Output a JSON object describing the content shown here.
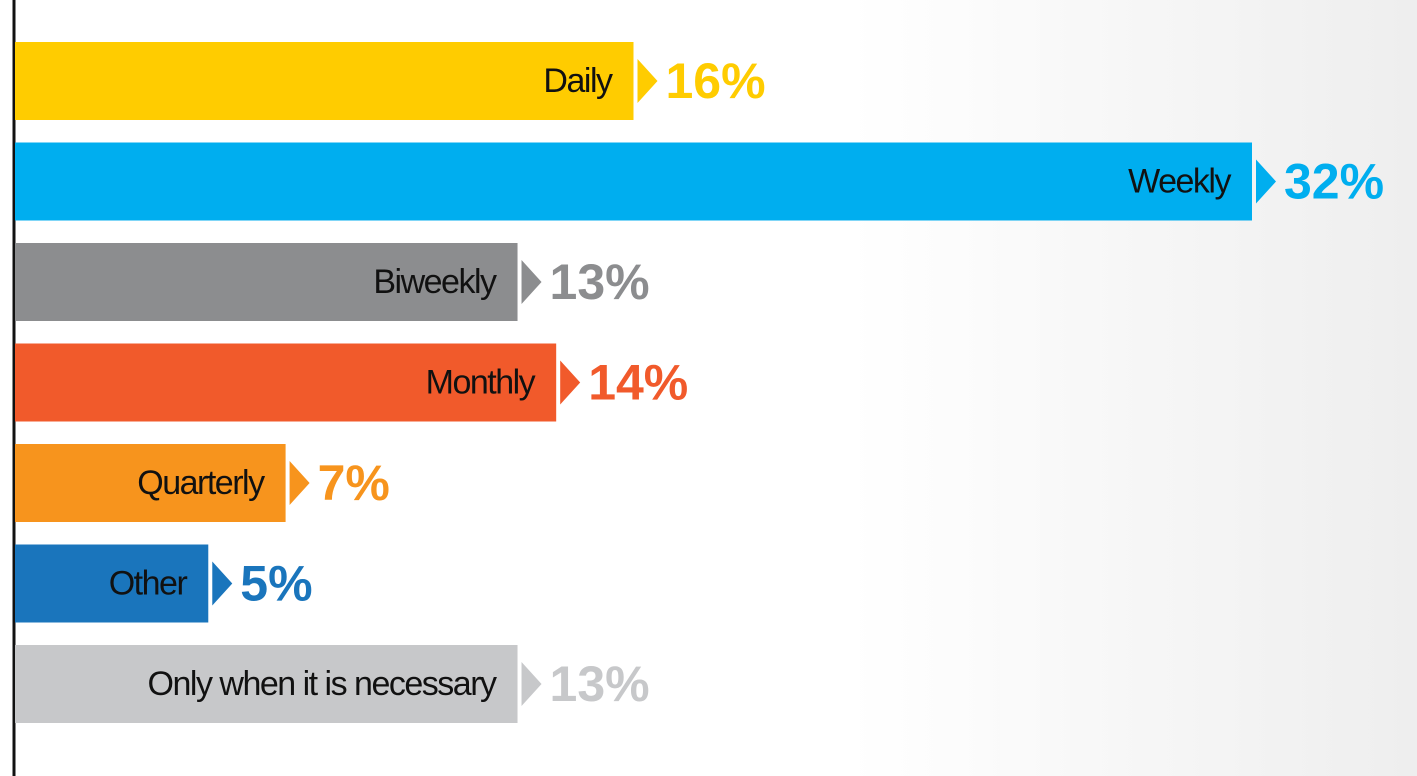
{
  "chart_data": {
    "type": "bar",
    "orientation": "horizontal",
    "categories": [
      "Daily",
      "Weekly",
      "Biweekly",
      "Monthly",
      "Quarterly",
      "Other",
      "Only when it is necessary"
    ],
    "values": [
      16,
      32,
      13,
      14,
      7,
      5,
      13
    ],
    "value_labels": [
      "16%",
      "32%",
      "13%",
      "14%",
      "7%",
      "5%",
      "13%"
    ],
    "colors": [
      "#ffcc00",
      "#00aeef",
      "#8c8d8f",
      "#f15a2b",
      "#f7941d",
      "#1a75bc",
      "#c7c8ca"
    ]
  }
}
